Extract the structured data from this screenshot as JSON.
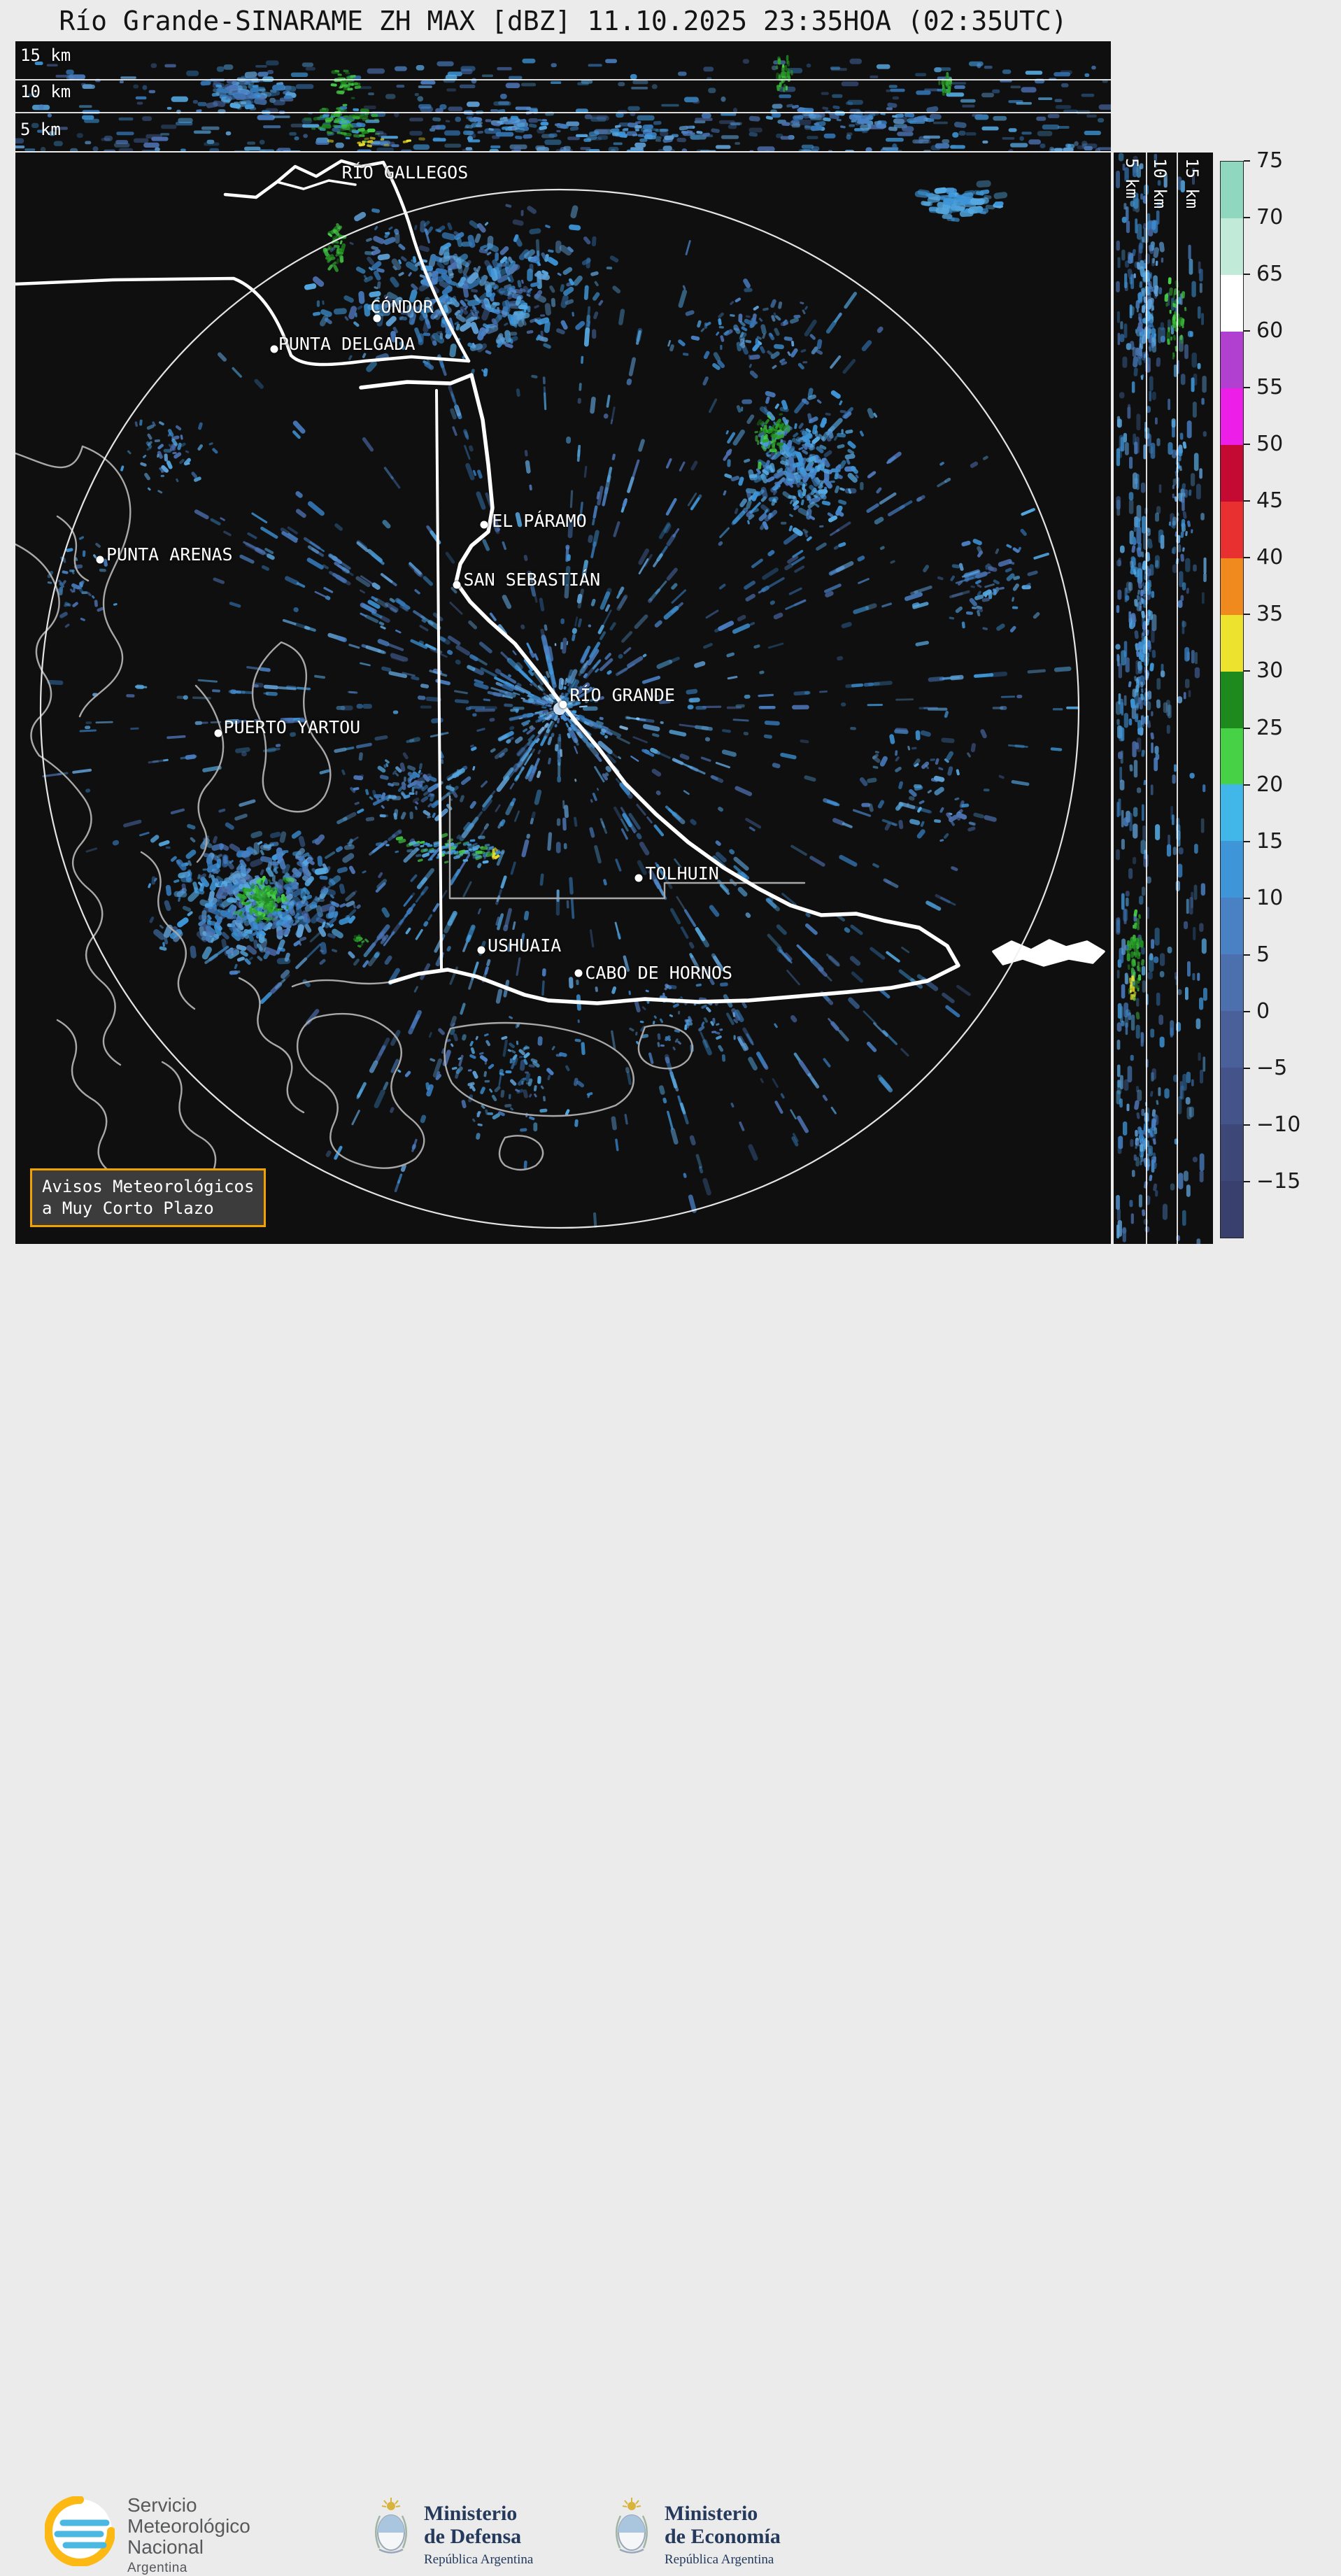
{
  "title": "Río Grande-SINARAME ZH MAX [dBZ] 11.10.2025 23:35HOA (02:35UTC)",
  "top_profile": {
    "alt_labels": [
      "15 km",
      "10 km",
      "5 km"
    ]
  },
  "right_profile": {
    "alt_labels": [
      "5 km",
      "10 km",
      "15 km"
    ]
  },
  "map": {
    "places": [
      {
        "name": "RÍO GALLEGOS",
        "lx": 0.298,
        "ly": 0.009,
        "dot": null
      },
      {
        "name": "CÓNDOR",
        "lx": 0.324,
        "ly": 0.132,
        "dot": [
          0.33,
          0.152
        ]
      },
      {
        "name": "PUNTA DELGADA",
        "lx": 0.24,
        "ly": 0.166,
        "dot": [
          0.236,
          0.18
        ]
      },
      {
        "name": "EL PÁRAMO",
        "lx": 0.435,
        "ly": 0.328,
        "dot": [
          0.428,
          0.341
        ]
      },
      {
        "name": "SAN SEBASTIÁN",
        "lx": 0.409,
        "ly": 0.382,
        "dot": [
          0.403,
          0.396
        ]
      },
      {
        "name": "PUNTA ARENAS",
        "lx": 0.083,
        "ly": 0.359,
        "dot": [
          0.077,
          0.373
        ]
      },
      {
        "name": "RÍO GRANDE",
        "lx": 0.506,
        "ly": 0.488,
        "dot": [
          0.5,
          0.506
        ]
      },
      {
        "name": "PUERTO YARTOU",
        "lx": 0.19,
        "ly": 0.517,
        "dot": [
          0.185,
          0.532
        ]
      },
      {
        "name": "TOLHUIN",
        "lx": 0.575,
        "ly": 0.651,
        "dot": [
          0.569,
          0.665
        ]
      },
      {
        "name": "USHUAIA",
        "lx": 0.431,
        "ly": 0.717,
        "dot": [
          0.425,
          0.731
        ]
      },
      {
        "name": "CABO DE HORNOS",
        "lx": 0.52,
        "ly": 0.742,
        "dot": [
          0.514,
          0.752
        ]
      }
    ]
  },
  "warning_box": {
    "lines": [
      "Avisos Meteorológicos",
      "a Muy Corto Plazo"
    ],
    "border_color": "#F0A202"
  },
  "colorbar": {
    "unit": "dBZ",
    "segments_top_to_bottom": [
      {
        "upper": 75,
        "lower": 70,
        "color": "#8FD8BF"
      },
      {
        "upper": 70,
        "lower": 65,
        "color": "#C2EAD8"
      },
      {
        "upper": 65,
        "lower": 60,
        "color": "#FFFFFF"
      },
      {
        "upper": 60,
        "lower": 55,
        "color": "#B13FCF"
      },
      {
        "upper": 55,
        "lower": 50,
        "color": "#EC1EE8"
      },
      {
        "upper": 50,
        "lower": 45,
        "color": "#C40A32"
      },
      {
        "upper": 45,
        "lower": 40,
        "color": "#E83030"
      },
      {
        "upper": 40,
        "lower": 35,
        "color": "#F08A1E"
      },
      {
        "upper": 35,
        "lower": 30,
        "color": "#EDE32E"
      },
      {
        "upper": 30,
        "lower": 25,
        "color": "#1E8A1E"
      },
      {
        "upper": 25,
        "lower": 20,
        "color": "#47D147"
      },
      {
        "upper": 20,
        "lower": 15,
        "color": "#41B6E8"
      },
      {
        "upper": 15,
        "lower": 10,
        "color": "#3E96D8"
      },
      {
        "upper": 10,
        "lower": 5,
        "color": "#4A80C4"
      },
      {
        "upper": 5,
        "lower": 0,
        "color": "#4C6FAE"
      },
      {
        "upper": 0,
        "lower": -5,
        "color": "#49609A"
      },
      {
        "upper": -5,
        "lower": -10,
        "color": "#445389"
      },
      {
        "upper": -10,
        "lower": -15,
        "color": "#3E4878"
      },
      {
        "upper": -15,
        "lower": -20,
        "color": "#3A406E"
      }
    ],
    "tick_labels": [
      "75",
      "70",
      "65",
      "60",
      "55",
      "50",
      "45",
      "40",
      "35",
      "30",
      "25",
      "20",
      "15",
      "10",
      "5",
      "0",
      "−5",
      "−10",
      "−15"
    ],
    "value_range": [
      -20,
      75
    ]
  },
  "footer": {
    "smn": {
      "name_lines": [
        "Servicio",
        "Meteorológico",
        "Nacional"
      ],
      "country": "Argentina"
    },
    "ministries": [
      {
        "line1": "Ministerio",
        "line2": "de Defensa",
        "sub": "República Argentina"
      },
      {
        "line1": "Ministerio",
        "line2": "de Economía",
        "sub": "República Argentina"
      }
    ]
  }
}
